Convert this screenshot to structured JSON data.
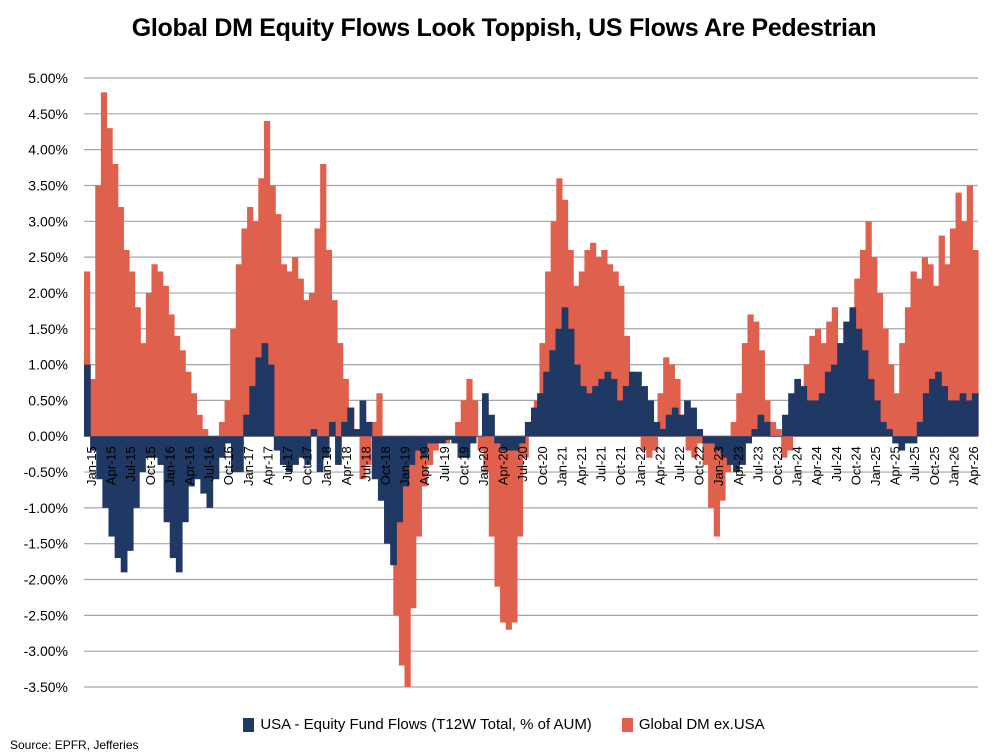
{
  "title": "Global DM Equity Flows Look Toppish, US Flows Are Pedestrian",
  "source": "Source: EPFR, Jefferies",
  "colors": {
    "usa": "#1f3864",
    "global": "#e0604e",
    "grid": "#a6a6a6"
  },
  "chart_data": {
    "type": "area",
    "title": "Global DM Equity Flows Look Toppish, US Flows Are Pedestrian",
    "ylim": [
      -3.5,
      5.0
    ],
    "yticks": [
      "5.00%",
      "4.50%",
      "4.00%",
      "3.50%",
      "3.00%",
      "2.50%",
      "2.00%",
      "1.50%",
      "1.00%",
      "0.50%",
      "0.00%",
      "-0.50%",
      "-1.00%",
      "-1.50%",
      "-2.00%",
      "-2.50%",
      "-3.00%",
      "-3.50%"
    ],
    "xlabels": [
      "Jan-15",
      "Apr-15",
      "Jul-15",
      "Oct-15",
      "Jan-16",
      "Apr-16",
      "Jul-16",
      "Oct-16",
      "Jan-17",
      "Apr-17",
      "Jul-17",
      "Oct-17",
      "Jan-18",
      "Apr-18",
      "Jul-18",
      "Oct-18",
      "Jan-19",
      "Apr-19",
      "Jul-19",
      "Oct-19",
      "Jan-20",
      "Apr-20",
      "Jul-20",
      "Oct-20",
      "Jan-21",
      "Apr-21",
      "Jul-21",
      "Oct-21",
      "Jan-22",
      "Apr-22",
      "Jul-22",
      "Oct-22",
      "Jan-23",
      "Apr-23",
      "Jul-23",
      "Oct-23",
      "Jan-24",
      "Apr-24",
      "Jul-24",
      "Oct-24",
      "Jan-25",
      "Apr-25",
      "Jul-25",
      "Oct-25",
      "Jan-26",
      "Apr-26"
    ],
    "x_start": "Jan-15",
    "grid": true,
    "legend_position": "bottom",
    "series": [
      {
        "name": "USA - Equity Fund Flows (T12W Total, % of AUM)",
        "values": [
          1.0,
          -0.2,
          -0.6,
          -1.0,
          -1.4,
          -1.7,
          -1.9,
          -1.6,
          -1.0,
          -0.5,
          -0.3,
          -0.3,
          -0.4,
          -1.2,
          -1.7,
          -1.9,
          -1.2,
          -0.7,
          -0.6,
          -0.8,
          -1.0,
          -0.6,
          -0.3,
          -0.1,
          -0.5,
          -0.5,
          0.3,
          0.7,
          1.1,
          1.3,
          1.0,
          -0.2,
          -0.4,
          -0.5,
          -0.4,
          -0.3,
          -0.4,
          0.1,
          -0.5,
          -0.3,
          0.2,
          -0.4,
          0.2,
          0.4,
          0.1,
          0.5,
          0.2,
          -0.6,
          -0.9,
          -1.5,
          -1.8,
          -1.2,
          -0.7,
          -0.4,
          -0.2,
          -0.3,
          -0.1,
          -0.1,
          -0.1,
          -0.05,
          -0.1,
          -0.3,
          -0.3,
          -0.1,
          0.0,
          0.6,
          0.3,
          -0.1,
          -0.2,
          -0.2,
          -0.2,
          -0.1,
          0.2,
          0.4,
          0.6,
          0.9,
          1.2,
          1.5,
          1.8,
          1.5,
          1.0,
          0.7,
          0.6,
          0.7,
          0.8,
          0.9,
          0.8,
          0.5,
          0.7,
          0.9,
          0.9,
          0.7,
          0.5,
          0.2,
          0.1,
          0.3,
          0.4,
          0.3,
          0.5,
          0.4,
          0.1,
          -0.1,
          -0.1,
          -0.2,
          -0.3,
          -0.4,
          -0.5,
          -0.4,
          -0.1,
          0.1,
          0.3,
          0.2,
          0.0,
          0.0,
          0.3,
          0.6,
          0.8,
          0.7,
          0.5,
          0.5,
          0.6,
          0.9,
          1.0,
          1.3,
          1.6,
          1.8,
          1.5,
          1.2,
          0.8,
          0.5,
          0.2,
          0.1,
          -0.1,
          -0.2,
          -0.1,
          -0.1,
          0.2,
          0.6,
          0.8,
          0.9,
          0.7,
          0.5,
          0.5,
          0.6,
          0.5,
          0.6
        ]
      },
      {
        "name": "Global DM ex.USA",
        "values": [
          2.3,
          0.8,
          3.5,
          4.8,
          4.3,
          3.8,
          3.2,
          2.6,
          2.3,
          1.8,
          1.3,
          2.0,
          2.4,
          2.3,
          2.1,
          1.7,
          1.4,
          1.2,
          0.9,
          0.6,
          0.3,
          0.1,
          -0.2,
          -0.3,
          0.2,
          0.5,
          1.5,
          2.4,
          2.9,
          3.2,
          3.0,
          3.6,
          4.4,
          3.5,
          3.1,
          2.4,
          2.3,
          2.5,
          2.2,
          1.9,
          2.0,
          2.9,
          3.8,
          2.6,
          1.9,
          1.3,
          0.8,
          0.4,
          0.1,
          -0.6,
          -0.4,
          0.2,
          0.6,
          0.0,
          -1.0,
          -2.5,
          -3.2,
          -3.5,
          -2.4,
          -1.4,
          -0.7,
          -0.4,
          -0.2,
          -0.1,
          -0.1,
          0.0,
          0.2,
          0.5,
          0.8,
          0.5,
          -0.2,
          -0.5,
          -1.4,
          -2.1,
          -2.6,
          -2.7,
          -2.6,
          -1.4,
          -0.3,
          0.2,
          0.5,
          1.3,
          2.3,
          3.0,
          3.6,
          3.3,
          2.6,
          2.1,
          2.3,
          2.6,
          2.7,
          2.5,
          2.6,
          2.4,
          2.3,
          2.1,
          1.4,
          0.9,
          0.2,
          -0.2,
          -0.3,
          -0.2,
          0.6,
          1.1,
          1.0,
          0.8,
          0.3,
          -0.2,
          -0.3,
          -0.1,
          -0.4,
          -1.0,
          -1.4,
          -0.9,
          -0.5,
          0.2,
          0.6,
          1.3,
          1.7,
          1.6,
          1.2,
          0.5,
          0.2,
          0.1,
          -0.3,
          -0.2,
          0.1,
          0.5,
          1.0,
          1.4,
          1.5,
          1.3,
          1.6,
          1.8,
          1.2,
          0.8,
          1.4,
          2.2,
          2.6,
          3.0,
          2.5,
          2.0,
          1.5,
          1.0,
          0.6,
          1.3,
          1.8,
          2.3,
          2.2,
          2.5,
          2.4,
          2.1,
          2.8,
          2.4,
          2.9,
          3.4,
          3.0,
          3.5,
          2.6
        ]
      }
    ]
  }
}
